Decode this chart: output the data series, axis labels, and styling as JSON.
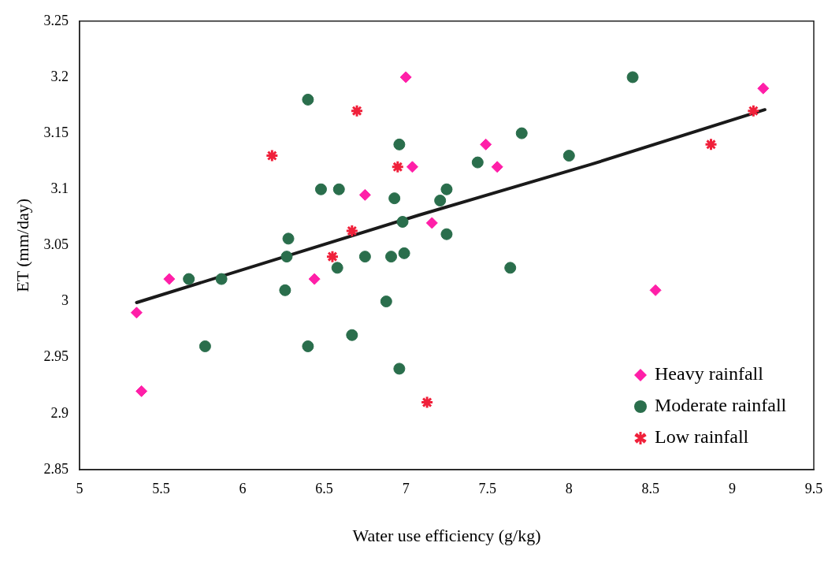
{
  "chart_data": {
    "type": "scatter",
    "xlabel": "Water use efficiency (g/kg)",
    "ylabel": "ET (mm/day)",
    "xlim": [
      5,
      9.5
    ],
    "xticks": [
      5,
      5.5,
      6,
      6.5,
      7,
      7.5,
      8,
      8.5,
      9,
      9.5
    ],
    "ylim": [
      2.85,
      3.25
    ],
    "yticks": [
      2.85,
      2.9,
      2.95,
      3,
      3.05,
      3.1,
      3.15,
      3.2,
      3.25
    ],
    "grid": false,
    "legend": "bottom right",
    "series": [
      {
        "name": "Heavy rainfall",
        "color": "#ff1fa8",
        "marker": "diamond",
        "x": [
          7.0,
          7.04,
          6.75,
          7.16,
          5.55,
          6.44,
          5.35,
          5.38,
          9.19,
          7.49,
          7.56,
          8.53
        ],
        "values": [
          3.2,
          3.12,
          3.095,
          3.07,
          3.02,
          3.02,
          2.99,
          2.92,
          3.19,
          3.14,
          3.12,
          3.01
        ]
      },
      {
        "name": "Moderate rainfall",
        "color": "#2a6e4c",
        "marker": "circle",
        "x": [
          6.4,
          6.96,
          6.48,
          6.59,
          6.93,
          7.25,
          7.21,
          6.98,
          7.25,
          6.28,
          6.27,
          6.75,
          6.91,
          6.99,
          6.58,
          5.67,
          5.87,
          6.26,
          6.88,
          5.77,
          6.4,
          6.67,
          6.96,
          8.39,
          7.71,
          7.44,
          8.0,
          7.64
        ],
        "values": [
          3.18,
          3.14,
          3.1,
          3.1,
          3.092,
          3.1,
          3.09,
          3.071,
          3.06,
          3.056,
          3.04,
          3.04,
          3.04,
          3.043,
          3.03,
          3.02,
          3.02,
          3.01,
          3.0,
          2.96,
          2.96,
          2.97,
          2.94,
          3.2,
          3.15,
          3.124,
          3.13,
          3.03
        ]
      },
      {
        "name": "Low rainfall",
        "color": "#f0203a",
        "marker": "cross",
        "x": [
          6.7,
          6.18,
          6.95,
          6.67,
          6.55,
          7.13,
          9.13,
          8.87
        ],
        "values": [
          3.17,
          3.13,
          3.12,
          3.063,
          3.04,
          2.91,
          3.17,
          3.14
        ]
      },
      {
        "type": "line",
        "color": "#1a1a1a",
        "marker": "none",
        "x": [
          5.35,
          7.08,
          8.13,
          9.2
        ],
        "values": [
          2.999,
          3.077,
          3.122,
          3.171
        ]
      }
    ]
  }
}
